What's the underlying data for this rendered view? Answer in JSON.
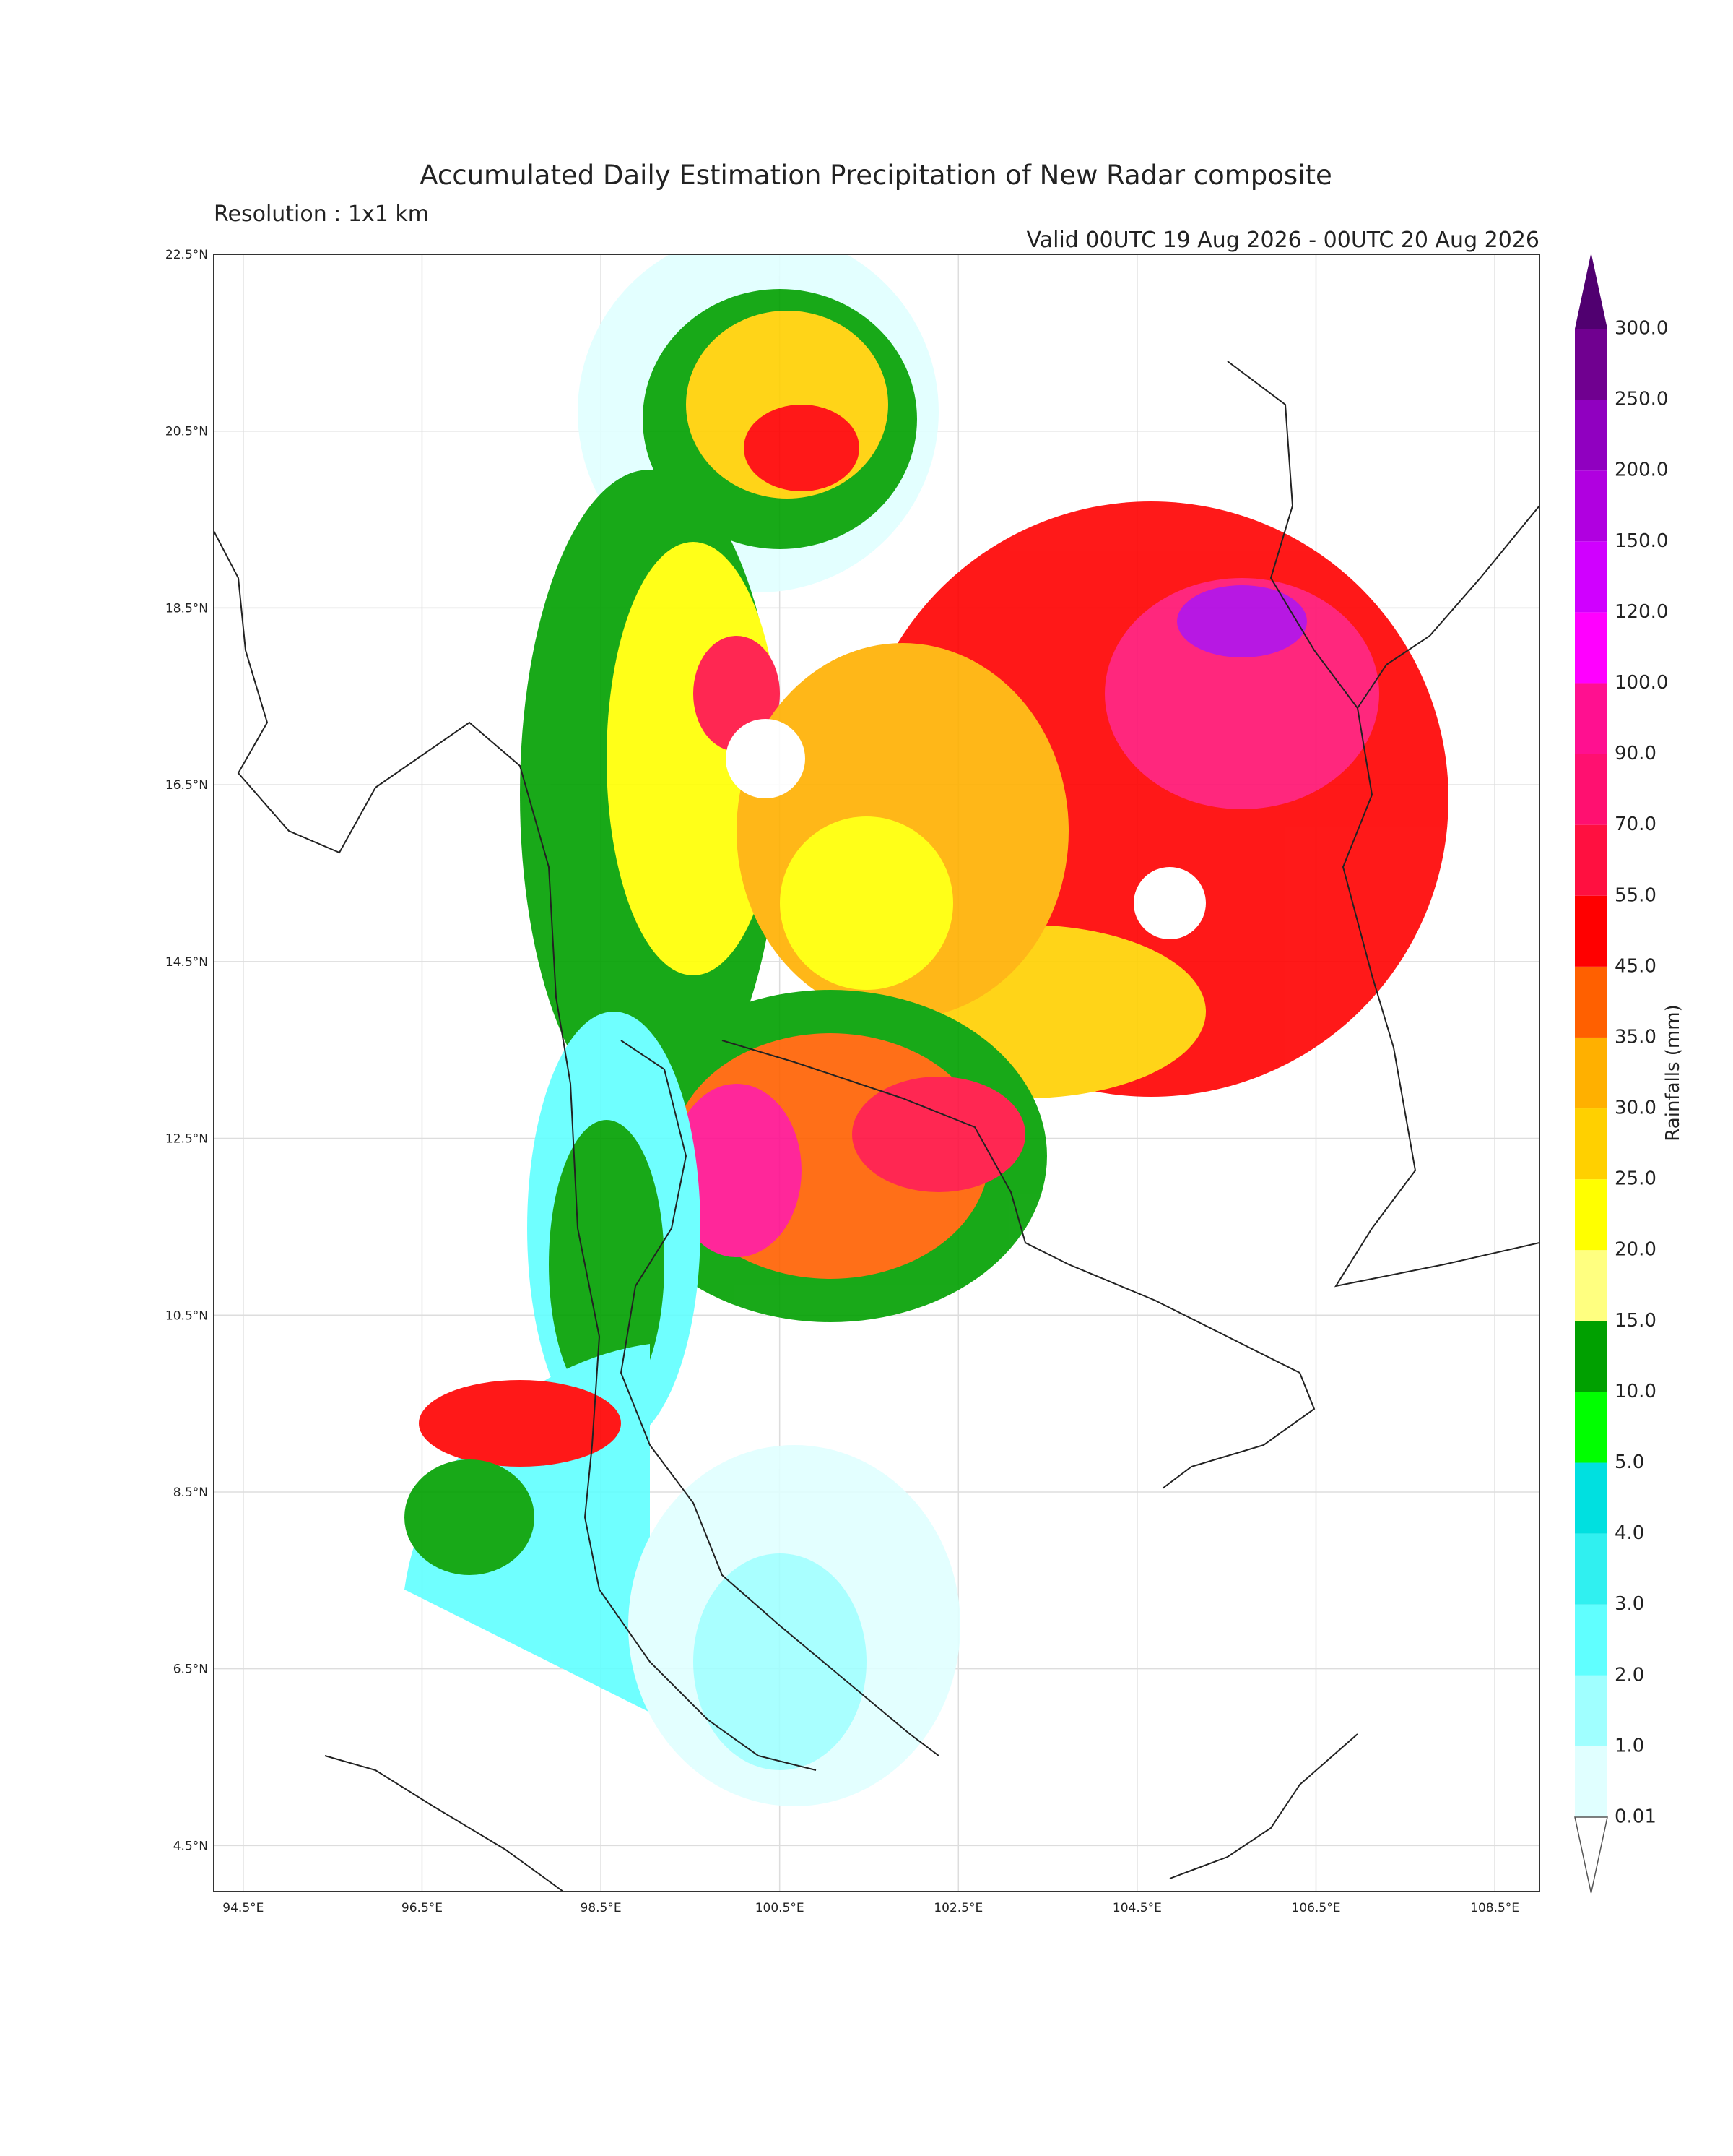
{
  "chart_data": {
    "type": "map",
    "title": "Accumulated Daily Estimation Precipitation of New Radar composite",
    "subtitle": "Resolution : 1x1 km",
    "annotation": "Valid 00UTC 19 Aug 2026 - 00UTC 20 Aug 2026",
    "xlim": [
      94.17,
      109.0
    ],
    "ylim": [
      3.98,
      22.5
    ],
    "xticks": [
      {
        "value": 94.5,
        "label": "94.5°E"
      },
      {
        "value": 96.5,
        "label": "96.5°E"
      },
      {
        "value": 98.5,
        "label": "98.5°E"
      },
      {
        "value": 100.5,
        "label": "100.5°E"
      },
      {
        "value": 102.5,
        "label": "102.5°E"
      },
      {
        "value": 104.5,
        "label": "104.5°E"
      },
      {
        "value": 106.5,
        "label": "106.5°E"
      },
      {
        "value": 108.5,
        "label": "108.5°E"
      }
    ],
    "yticks": [
      {
        "value": 4.5,
        "label": "4.5°N"
      },
      {
        "value": 6.5,
        "label": "6.5°N"
      },
      {
        "value": 8.5,
        "label": "8.5°N"
      },
      {
        "value": 10.5,
        "label": "10.5°N"
      },
      {
        "value": 12.5,
        "label": "12.5°N"
      },
      {
        "value": 14.5,
        "label": "14.5°N"
      },
      {
        "value": 16.5,
        "label": "16.5°N"
      },
      {
        "value": 18.5,
        "label": "18.5°N"
      },
      {
        "value": 20.5,
        "label": "20.5°N"
      },
      {
        "value": 22.5,
        "label": "22.5°N"
      }
    ],
    "grid": true,
    "colorbar": {
      "label": "Rainfalls (mm)",
      "levels": [
        0.01,
        {
          "value": 1,
          "label": "1.0"
        },
        {
          "value": 2,
          "label": "2.0"
        },
        {
          "value": 3,
          "label": "3.0"
        },
        {
          "value": 4,
          "label": "4.0"
        },
        {
          "value": 5,
          "label": "5.0"
        },
        {
          "value": 10,
          "label": "10.0"
        },
        {
          "value": 15,
          "label": "15.0"
        },
        {
          "value": 20,
          "label": "20.0"
        },
        {
          "value": 25,
          "label": "25.0"
        },
        {
          "value": 30,
          "label": "30.0"
        },
        {
          "value": 35,
          "label": "35.0"
        },
        {
          "value": 45,
          "label": "45.0"
        },
        {
          "value": 55,
          "label": "55.0"
        },
        {
          "value": 70,
          "label": "70.0"
        },
        {
          "value": 90,
          "label": "90.0"
        },
        {
          "value": 100,
          "label": "100.0"
        },
        {
          "value": 120,
          "label": "120.0"
        },
        {
          "value": 150,
          "label": "150.0"
        },
        {
          "value": 200,
          "label": "200.0"
        },
        {
          "value": 250,
          "label": "250.0"
        },
        {
          "value": 300,
          "label": "300.0"
        }
      ],
      "colors": [
        "#e0ffff",
        "#a0ffff",
        "#60ffff",
        "#30f0f0",
        "#00e0e0",
        "#00ff00",
        "#00a000",
        "#ffff80",
        "#ffff00",
        "#ffd000",
        "#ffb000",
        "#ff6000",
        "#ff0000",
        "#ff1040",
        "#ff1070",
        "#ff1090",
        "#ff00ff",
        "#d000ff",
        "#b000e0",
        "#9000c0",
        "#700090"
      ],
      "over_color": "#500070",
      "under_color": "#ffffff"
    }
  }
}
